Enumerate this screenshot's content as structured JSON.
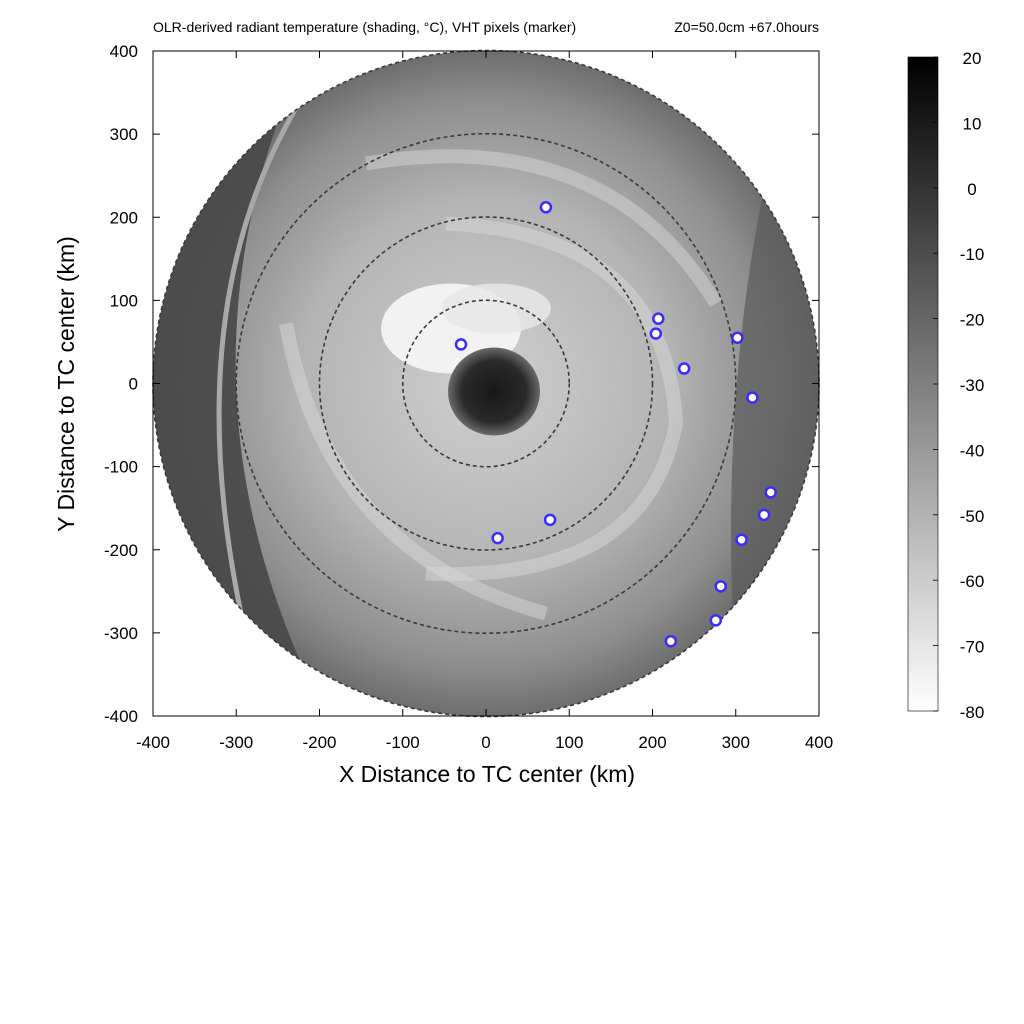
{
  "chart_data": {
    "type": "scatter",
    "title": "OLR-derived radiant temperature (shading, °C), VHT pixels (marker)",
    "title_right": "Z0=50.0cm  +67.0hours",
    "xlabel": "X Distance to TC center (km)",
    "ylabel": "Y Distance to TC center (km)",
    "xlim": [
      -400,
      400
    ],
    "ylim": [
      -400,
      400
    ],
    "x_ticks": [
      "-400",
      "-300",
      "-200",
      "-100",
      "0",
      "100",
      "200",
      "300",
      "400"
    ],
    "y_ticks": [
      "400",
      "300",
      "200",
      "100",
      "0",
      "-100",
      "-200",
      "-300",
      "-400"
    ],
    "x_tick_values": [
      -400,
      -300,
      -200,
      -100,
      0,
      100,
      200,
      300,
      400
    ],
    "y_tick_values": [
      400,
      300,
      200,
      100,
      0,
      -100,
      -200,
      -300,
      -400
    ],
    "range_rings_km": [
      100,
      200,
      300,
      400
    ],
    "colorbar": {
      "range": [
        -80,
        20
      ],
      "ticks": [
        "20",
        "10",
        "0",
        "-10",
        "-20",
        "-30",
        "-40",
        "-50",
        "-60",
        "-70",
        "-80"
      ],
      "tick_values": [
        20,
        10,
        0,
        -10,
        -20,
        -30,
        -40,
        -50,
        -60,
        -70,
        -80
      ],
      "colormap": "gray: -80 white to 20 black"
    },
    "vht_marker_color": "#3a2bff",
    "series": [
      {
        "type": "scatter",
        "points": [
          {
            "x": -30,
            "y": 47
          },
          {
            "x": 72,
            "y": 212
          },
          {
            "x": 207,
            "y": 78
          },
          {
            "x": 204,
            "y": 60
          },
          {
            "x": 238,
            "y": 18
          },
          {
            "x": 302,
            "y": 55
          },
          {
            "x": 320,
            "y": -17
          },
          {
            "x": 342,
            "y": -131
          },
          {
            "x": 334,
            "y": -158
          },
          {
            "x": 307,
            "y": -188
          },
          {
            "x": 282,
            "y": -244
          },
          {
            "x": 276,
            "y": -285
          },
          {
            "x": 222,
            "y": -310
          },
          {
            "x": 77,
            "y": -164
          },
          {
            "x": 14,
            "y": -186
          }
        ]
      }
    ]
  }
}
